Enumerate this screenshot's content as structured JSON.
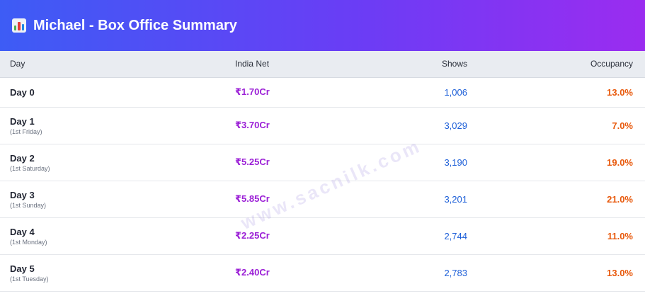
{
  "header": {
    "icon": "bar-chart-icon",
    "title": "Michael - Box Office Summary"
  },
  "table": {
    "columns": [
      "Day",
      "India Net",
      "Shows",
      "Occupancy"
    ],
    "rows": [
      {
        "day": "Day 0",
        "sub": "",
        "net": "₹1.70Cr",
        "shows": "1,006",
        "occupancy": "13.0%"
      },
      {
        "day": "Day 1",
        "sub": "(1st Friday)",
        "net": "₹3.70Cr",
        "shows": "3,029",
        "occupancy": "7.0%"
      },
      {
        "day": "Day 2",
        "sub": "(1st Saturday)",
        "net": "₹5.25Cr",
        "shows": "3,190",
        "occupancy": "19.0%"
      },
      {
        "day": "Day 3",
        "sub": "(1st Sunday)",
        "net": "₹5.85Cr",
        "shows": "3,201",
        "occupancy": "21.0%"
      },
      {
        "day": "Day 4",
        "sub": "(1st Monday)",
        "net": "₹2.25Cr",
        "shows": "2,744",
        "occupancy": "11.0%"
      },
      {
        "day": "Day 5",
        "sub": "(1st Tuesday)",
        "net": "₹2.40Cr",
        "shows": "2,783",
        "occupancy": "13.0%"
      }
    ]
  },
  "watermark": "www.sacnilk.com",
  "colors": {
    "header_gradient_start": "#3d5cf5",
    "header_gradient_end": "#9b2cf0",
    "net": "#9b1fd6",
    "shows": "#1d5fd8",
    "occupancy": "#e8590c"
  }
}
